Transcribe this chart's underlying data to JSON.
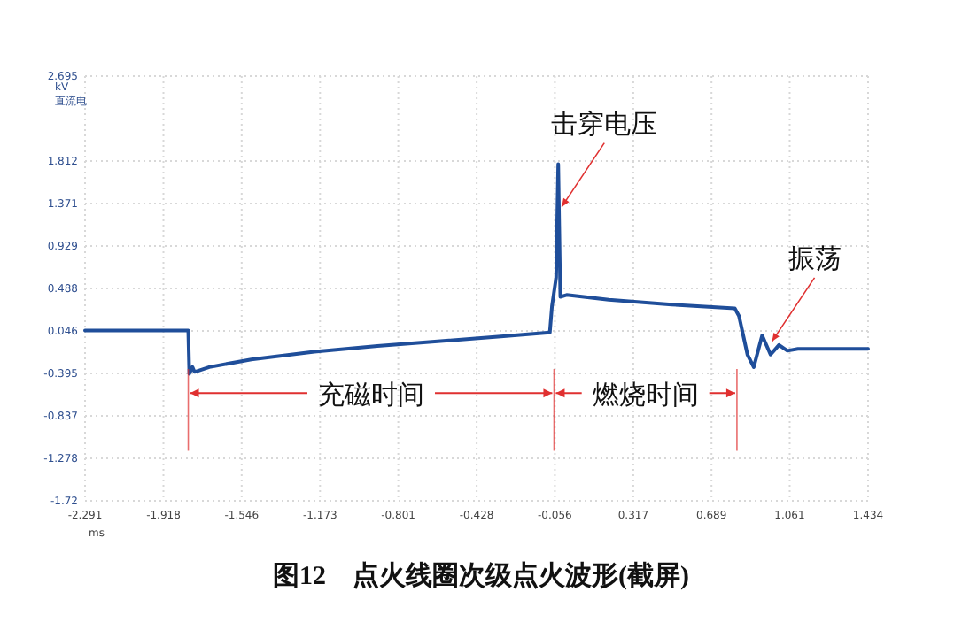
{
  "chart_data": {
    "type": "line",
    "title": "图12　点火线圈次级点火波形(截屏)",
    "xlabel": "ms",
    "ylabel": "kV 直流电",
    "xlim": [
      -2.291,
      1.434
    ],
    "xticks": [
      -2.291,
      -1.918,
      -1.546,
      -1.173,
      -0.801,
      -0.428,
      -0.056,
      0.317,
      0.689,
      1.061,
      1.434
    ],
    "ylim": [
      -1.72,
      2.695
    ],
    "yticks": [
      -1.72,
      -1.278,
      -0.837,
      -0.395,
      0.046,
      0.488,
      0.929,
      1.371,
      1.812,
      2.695
    ],
    "grid": true,
    "line_style": "solid",
    "marker": "none",
    "series": [
      {
        "color": "#1f4e9a",
        "x": [
          -2.291,
          -1.8,
          -1.795,
          -1.78,
          -1.77,
          -1.7,
          -1.5,
          -1.2,
          -0.9,
          -0.6,
          -0.3,
          -0.08,
          -0.07,
          -0.05,
          -0.04,
          -0.03,
          0.0,
          0.2,
          0.5,
          0.8,
          0.82,
          0.86,
          0.89,
          0.93,
          0.97,
          1.01,
          1.05,
          1.1,
          1.434
        ],
        "values": [
          0.05,
          0.05,
          -0.4,
          -0.33,
          -0.38,
          -0.33,
          -0.25,
          -0.17,
          -0.11,
          -0.06,
          -0.01,
          0.03,
          0.3,
          0.6,
          1.78,
          0.4,
          0.42,
          0.37,
          0.32,
          0.28,
          0.2,
          -0.2,
          -0.33,
          0.0,
          -0.2,
          -0.1,
          -0.16,
          -0.14,
          -0.14
        ]
      }
    ],
    "ref_lines": [
      {
        "axis": "x",
        "value": -1.8,
        "color": "#e03030"
      },
      {
        "axis": "x",
        "value": -0.06,
        "color": "#e03030"
      },
      {
        "axis": "x",
        "value": 0.81,
        "color": "#e03030"
      }
    ],
    "annotations": [
      {
        "text": "击穿电压",
        "x": -0.04,
        "y": 1.3
      },
      {
        "text": "振荡",
        "x": 0.96,
        "y": -0.1
      },
      {
        "text": "充磁时间",
        "x": -1.8,
        "y": -0.6
      },
      {
        "text": "燃烧时间",
        "x": -0.06,
        "y": -0.6
      }
    ]
  }
}
